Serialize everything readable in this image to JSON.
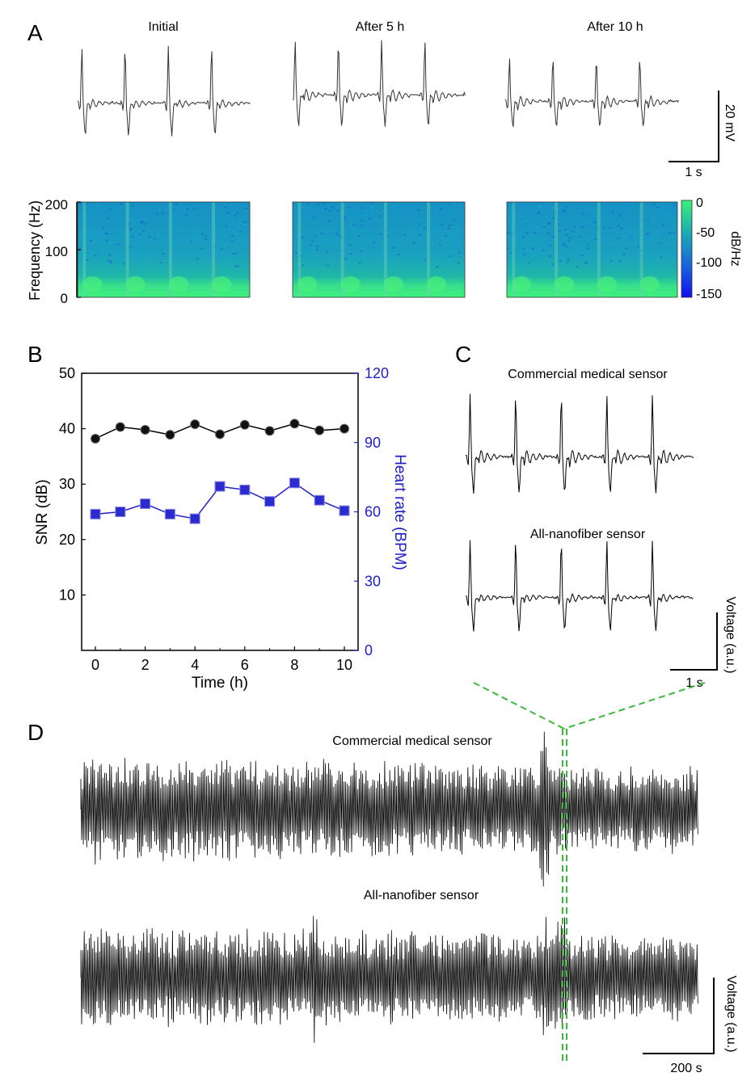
{
  "panel_letters": {
    "a": "A",
    "b": "B",
    "c": "C",
    "d": "D"
  },
  "chart_data": [
    {
      "panel": "A-ecg",
      "type": "line",
      "traces": [
        "Initial",
        "After 5 h",
        "After 10 h"
      ],
      "beats_per_trace": 4,
      "scale_bar": {
        "vertical": "20 mV",
        "horizontal": "1 s"
      }
    },
    {
      "panel": "A-spectrogram",
      "type": "heatmap",
      "ylabel": "Frequency (Hz)",
      "yticks": [
        0,
        100,
        200
      ],
      "colorbar": {
        "label": "dB/Hz",
        "ticks": [
          0,
          -50,
          -100,
          -150
        ],
        "range": [
          -150,
          0
        ]
      },
      "colors": {
        "high": "#3cf07a",
        "mid": "#1aa0c8",
        "low": "#1414e6"
      }
    },
    {
      "panel": "B",
      "type": "line",
      "xlabel": "Time (h)",
      "ylabel": "SNR (dB)",
      "ylabel_right": "Heart rate (BPM)",
      "xlim": [
        0,
        10
      ],
      "ylim": [
        0,
        50
      ],
      "ylim_right": [
        0,
        120
      ],
      "xticks": [
        0,
        2,
        4,
        6,
        8,
        10
      ],
      "yticks": [
        10,
        20,
        30,
        40,
        50
      ],
      "yticks_right": [
        0,
        30,
        60,
        90,
        120
      ],
      "series": [
        {
          "name": "SNR",
          "axis": "left",
          "color": "#000000",
          "marker": "circle",
          "x": [
            0,
            1,
            2,
            3,
            4,
            5,
            6,
            7,
            8,
            9,
            10
          ],
          "values": [
            38.2,
            40.3,
            39.8,
            38.9,
            40.8,
            39.0,
            40.7,
            39.6,
            40.9,
            39.7,
            40.0
          ]
        },
        {
          "name": "Heart rate",
          "axis": "right",
          "color": "#2020c8",
          "marker": "square",
          "x": [
            0,
            1,
            2,
            3,
            4,
            5,
            6,
            7,
            8,
            9,
            10
          ],
          "values": [
            59,
            60,
            63.5,
            59,
            57,
            71,
            69.5,
            64.5,
            72.5,
            65,
            60.5
          ]
        }
      ]
    },
    {
      "panel": "C",
      "type": "line",
      "traces": [
        "Commercial medical sensor",
        "All-nanofiber sensor"
      ],
      "beats_per_trace": 5,
      "scale_bar": {
        "vertical": "Voltage (a.u.)",
        "horizontal": "1 s"
      }
    },
    {
      "panel": "D",
      "type": "line",
      "traces": [
        "Commercial medical sensor",
        "All-nanofiber sensor"
      ],
      "scale_bar": {
        "vertical": "Voltage (a.u.)",
        "horizontal": "200 s"
      },
      "highlight_color": "#3cb93c"
    }
  ]
}
